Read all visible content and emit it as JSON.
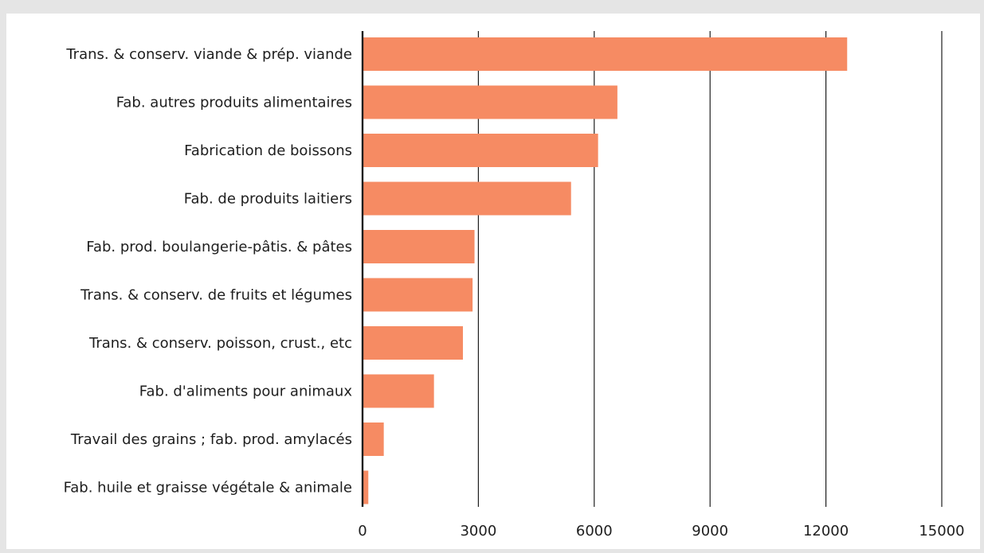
{
  "chart_data": {
    "type": "bar",
    "orientation": "horizontal",
    "title": "",
    "xlabel": "",
    "ylabel": "",
    "categories": [
      "Trans. & conserv. viande & prép. viande",
      "Fab. autres produits alimentaires",
      "Fabrication de boissons",
      "Fab. de produits laitiers",
      "Fab. prod. boulangerie-pâtis. & pâtes",
      "Trans. & conserv. de fruits et légumes",
      "Trans. & conserv. poisson, crust., etc",
      "Fab. d'aliments pour animaux",
      "Travail des grains ; fab. prod. amylacés",
      "Fab. huile et graisse végétale & animale"
    ],
    "values": [
      12550,
      6600,
      6100,
      5400,
      2900,
      2850,
      2600,
      1850,
      550,
      150
    ],
    "xlim": [
      0,
      15000
    ],
    "xticks": [
      "0",
      "3000",
      "6000",
      "9000",
      "12000",
      "15000"
    ],
    "grid": true,
    "legend": "none",
    "colors": {
      "bar": "#f68b63",
      "grid": "#1e1e1e",
      "text": "#1e1e1e",
      "background": "#e5e5e5",
      "panel": "#ffffff"
    }
  }
}
